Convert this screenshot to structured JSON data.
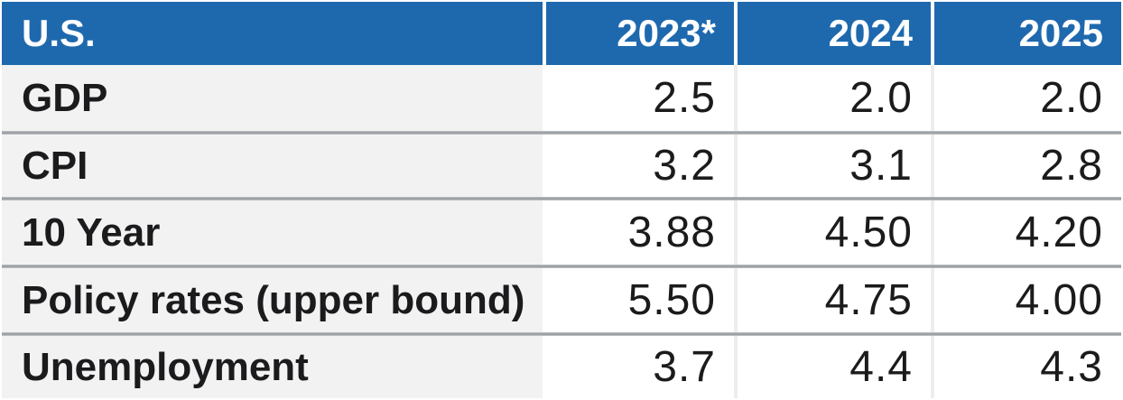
{
  "chart_data": {
    "type": "table",
    "header": {
      "region_label": "U.S.",
      "years": [
        "2023*",
        "2024",
        "2025"
      ]
    },
    "rows": [
      {
        "label": "GDP",
        "values": [
          "2.5",
          "2.0",
          "2.0"
        ]
      },
      {
        "label": "CPI",
        "values": [
          "3.2",
          "3.1",
          "2.8"
        ]
      },
      {
        "label": "10 Year",
        "values": [
          "3.88",
          "4.50",
          "4.20"
        ]
      },
      {
        "label": "Policy rates (upper bound)",
        "values": [
          "5.50",
          "4.75",
          "4.00"
        ]
      },
      {
        "label": "Unemployment",
        "values": [
          "3.7",
          "4.4",
          "4.3"
        ]
      }
    ],
    "layout": {
      "legend": "none",
      "grid": "row-dividers",
      "value_alignment": "right",
      "label_alignment": "left"
    }
  },
  "colors": {
    "header_bg": "#1e69ae",
    "header_text": "#ffffff",
    "label_column_bg": "#f2f2f3",
    "value_cell_bg": "#ffffff",
    "text": "#1b1b1d",
    "row_divider": "#9ea1a5",
    "column_divider": "#ededef"
  }
}
